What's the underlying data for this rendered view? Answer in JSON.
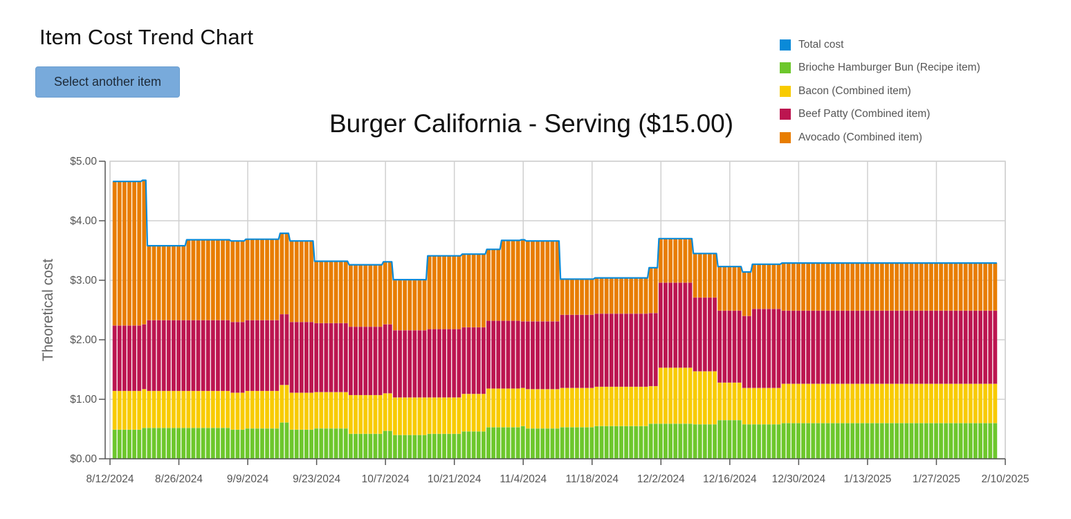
{
  "page": {
    "title": "Item Cost Trend Chart",
    "select_button_label": "Select another item"
  },
  "legend": {
    "items": [
      {
        "label": "Total cost",
        "color": "#0A8AD8",
        "icon": "square"
      },
      {
        "label": "Brioche Hamburger Bun (Recipe item)",
        "color": "#6DC72C",
        "icon": "square"
      },
      {
        "label": "Bacon (Combined item)",
        "color": "#F8CB00",
        "icon": "square"
      },
      {
        "label": "Beef Patty (Combined item)",
        "color": "#BC1550",
        "icon": "square"
      },
      {
        "label": "Avocado (Combined item)",
        "color": "#E87D00",
        "icon": "square"
      }
    ]
  },
  "chart_data": {
    "type": "bar",
    "stacked": true,
    "title": "Burger California - Serving ($15.00)",
    "xlabel": "",
    "ylabel": "Theoretical cost",
    "ylim": [
      0,
      5
    ],
    "yticks": [
      "$0.00",
      "$1.00",
      "$2.00",
      "$3.00",
      "$4.00",
      "$5.00"
    ],
    "xticks": [
      "8/12/2024",
      "8/26/2024",
      "9/9/2024",
      "9/23/2024",
      "10/7/2024",
      "10/21/2024",
      "11/4/2024",
      "11/18/2024",
      "12/2/2024",
      "12/16/2024",
      "12/30/2024",
      "1/13/2025",
      "1/27/2025",
      "2/10/2025"
    ],
    "x_start": "8/12/2024",
    "x_end": "2/10/2025",
    "x_unit": "day",
    "grid": true,
    "legend_position": "top-right",
    "series": [
      {
        "name": "Brioche Hamburger Bun (Recipe item)",
        "color": "#6DC72C"
      },
      {
        "name": "Bacon (Combined item)",
        "color": "#F8CB00"
      },
      {
        "name": "Beef Patty (Combined item)",
        "color": "#BC1550"
      },
      {
        "name": "Avocado (Combined item)",
        "color": "#E87D00"
      }
    ],
    "total_series": {
      "name": "Total cost",
      "color": "#0A8AD8",
      "type": "line"
    },
    "daily_runs_note": "Each run = consecutive days [start_day, end_day] (day 0 = 8/12/2024) with per-day cost of bun, bacon, beef, avocado; total = sum",
    "runs": [
      {
        "days": [
          0,
          5
        ],
        "bun": 0.49,
        "bacon": 0.65,
        "beef": 1.1,
        "avocado": 2.42
      },
      {
        "days": [
          6,
          6
        ],
        "bun": 0.52,
        "bacon": 0.65,
        "beef": 1.09,
        "avocado": 2.42
      },
      {
        "days": [
          7,
          14
        ],
        "bun": 0.52,
        "bacon": 0.62,
        "beef": 1.19,
        "avocado": 1.25
      },
      {
        "days": [
          15,
          23
        ],
        "bun": 0.52,
        "bacon": 0.62,
        "beef": 1.19,
        "avocado": 1.35
      },
      {
        "days": [
          24,
          26
        ],
        "bun": 0.49,
        "bacon": 0.62,
        "beef": 1.19,
        "avocado": 1.36
      },
      {
        "days": [
          27,
          33
        ],
        "bun": 0.51,
        "bacon": 0.63,
        "beef": 1.19,
        "avocado": 1.36
      },
      {
        "days": [
          34,
          35
        ],
        "bun": 0.61,
        "bacon": 0.63,
        "beef": 1.19,
        "avocado": 1.36
      },
      {
        "days": [
          36,
          40
        ],
        "bun": 0.49,
        "bacon": 0.62,
        "beef": 1.19,
        "avocado": 1.36
      },
      {
        "days": [
          41,
          47
        ],
        "bun": 0.51,
        "bacon": 0.61,
        "beef": 1.16,
        "avocado": 1.04
      },
      {
        "days": [
          48,
          54
        ],
        "bun": 0.42,
        "bacon": 0.65,
        "beef": 1.15,
        "avocado": 1.04
      },
      {
        "days": [
          55,
          56
        ],
        "bun": 0.47,
        "bacon": 0.63,
        "beef": 1.16,
        "avocado": 1.05
      },
      {
        "days": [
          57,
          63
        ],
        "bun": 0.4,
        "bacon": 0.63,
        "beef": 1.13,
        "avocado": 0.85
      },
      {
        "days": [
          64,
          70
        ],
        "bun": 0.42,
        "bacon": 0.61,
        "beef": 1.15,
        "avocado": 1.23
      },
      {
        "days": [
          71,
          75
        ],
        "bun": 0.46,
        "bacon": 0.63,
        "beef": 1.12,
        "avocado": 1.23
      },
      {
        "days": [
          76,
          78
        ],
        "bun": 0.53,
        "bacon": 0.65,
        "beef": 1.14,
        "avocado": 1.2
      },
      {
        "days": [
          79,
          82
        ],
        "bun": 0.53,
        "bacon": 0.65,
        "beef": 1.14,
        "avocado": 1.35
      },
      {
        "days": [
          83,
          83
        ],
        "bun": 0.55,
        "bacon": 0.64,
        "beef": 1.12,
        "avocado": 1.37
      },
      {
        "days": [
          84,
          90
        ],
        "bun": 0.51,
        "bacon": 0.66,
        "beef": 1.14,
        "avocado": 1.35
      },
      {
        "days": [
          91,
          97
        ],
        "bun": 0.53,
        "bacon": 0.66,
        "beef": 1.23,
        "avocado": 0.6
      },
      {
        "days": [
          98,
          108
        ],
        "bun": 0.55,
        "bacon": 0.66,
        "beef": 1.23,
        "avocado": 0.6
      },
      {
        "days": [
          109,
          110
        ],
        "bun": 0.59,
        "bacon": 0.63,
        "beef": 1.23,
        "avocado": 0.76
      },
      {
        "days": [
          111,
          117
        ],
        "bun": 0.59,
        "bacon": 0.94,
        "beef": 1.43,
        "avocado": 0.74
      },
      {
        "days": [
          118,
          122
        ],
        "bun": 0.58,
        "bacon": 0.89,
        "beef": 1.24,
        "avocado": 0.74
      },
      {
        "days": [
          123,
          127
        ],
        "bun": 0.65,
        "bacon": 0.63,
        "beef": 1.21,
        "avocado": 0.74
      },
      {
        "days": [
          128,
          129
        ],
        "bun": 0.58,
        "bacon": 0.61,
        "beef": 1.21,
        "avocado": 0.74
      },
      {
        "days": [
          130,
          135
        ],
        "bun": 0.58,
        "bacon": 0.61,
        "beef": 1.33,
        "avocado": 0.75
      },
      {
        "days": [
          136,
          179
        ],
        "bun": 0.6,
        "bacon": 0.66,
        "beef": 1.23,
        "avocado": 0.8
      }
    ]
  }
}
